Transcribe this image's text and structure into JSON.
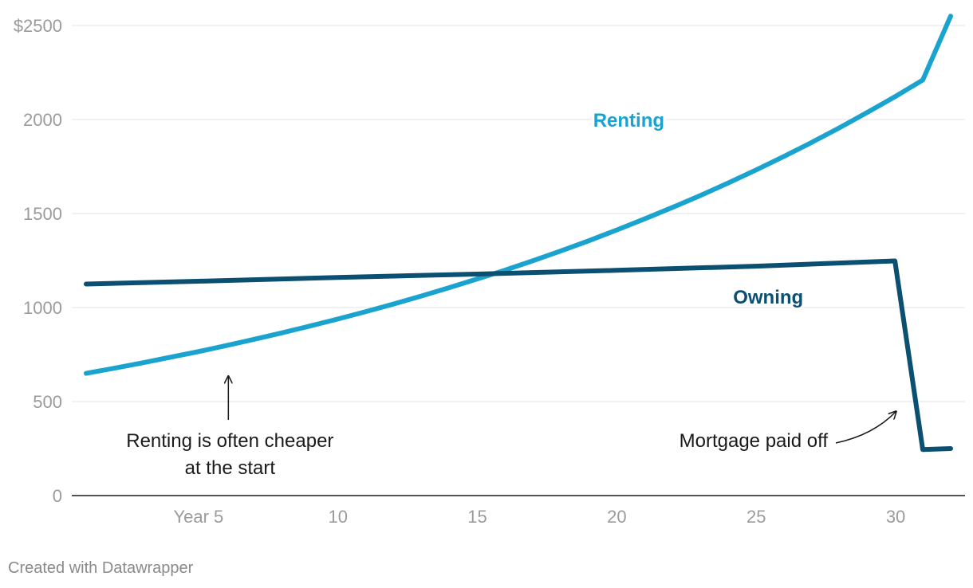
{
  "chart_data": {
    "type": "line",
    "xlim": [
      1,
      32
    ],
    "ylim": [
      0,
      2500
    ],
    "grid": true,
    "y_ticks": [
      {
        "value": 0,
        "label": "0"
      },
      {
        "value": 500,
        "label": "500"
      },
      {
        "value": 1000,
        "label": "1000"
      },
      {
        "value": 1500,
        "label": "1500"
      },
      {
        "value": 2000,
        "label": "2000"
      },
      {
        "value": 2500,
        "label": "$2500"
      }
    ],
    "x_ticks": [
      {
        "value": 5,
        "label": "Year 5"
      },
      {
        "value": 10,
        "label": "10"
      },
      {
        "value": 15,
        "label": "15"
      },
      {
        "value": 20,
        "label": "20"
      },
      {
        "value": 25,
        "label": "25"
      },
      {
        "value": 30,
        "label": "30"
      }
    ],
    "series": [
      {
        "name": "Renting",
        "color": "#1aa3cf",
        "label_position": {
          "x": 20,
          "y": 2000
        },
        "x": [
          1,
          2,
          3,
          4,
          5,
          6,
          7,
          8,
          9,
          10,
          11,
          12,
          13,
          14,
          15,
          16,
          17,
          18,
          19,
          20,
          21,
          22,
          23,
          24,
          25,
          26,
          27,
          28,
          29,
          30,
          31,
          32
        ],
        "values": [
          650,
          677,
          705,
          735,
          765,
          797,
          830,
          865,
          901,
          938,
          977,
          1018,
          1060,
          1105,
          1151,
          1198,
          1248,
          1300,
          1354,
          1411,
          1470,
          1531,
          1594,
          1661,
          1730,
          1802,
          1877,
          1955,
          2037,
          2121,
          2210,
          2550
        ]
      },
      {
        "name": "Owning",
        "color": "#0b4f71",
        "label_position": {
          "x": 25,
          "y": 1060
        },
        "x": [
          1,
          5,
          10,
          15,
          20,
          25,
          30,
          31,
          32
        ],
        "values": [
          1125,
          1140,
          1160,
          1178,
          1198,
          1220,
          1248,
          245,
          250
        ]
      }
    ],
    "annotations": [
      {
        "lines": [
          "Renting is often cheaper",
          "at the start"
        ],
        "anchor": {
          "x": 6.1,
          "y": 660
        },
        "arrow": "straight-up"
      },
      {
        "text": "Mortgage paid off",
        "anchor": {
          "x": 30.1,
          "y": 460
        },
        "arrow": "curved"
      }
    ]
  },
  "footer": {
    "credit": "Created with Datawrapper"
  }
}
